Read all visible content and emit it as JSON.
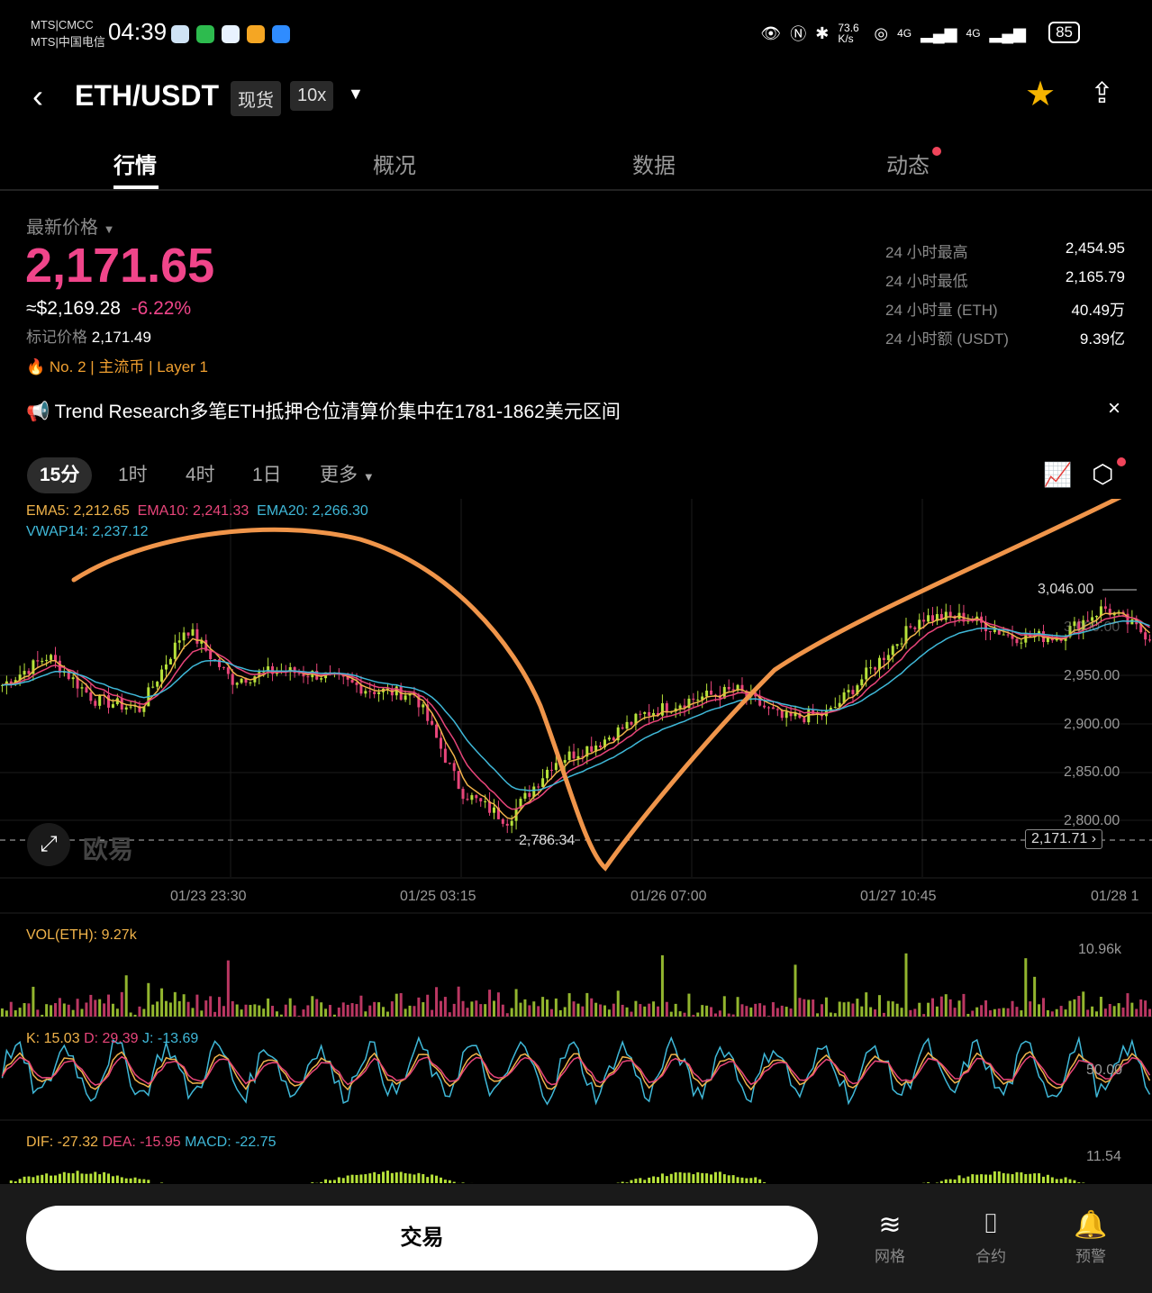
{
  "status_bar": {
    "carrier1": "MTS|CMCC",
    "carrier2": "MTS|中国电信",
    "time": "04:39",
    "speed": "73.6 K/s",
    "signal1": "4G",
    "signal2": "4G",
    "battery": "85"
  },
  "header": {
    "pair": "ETH/USDT",
    "tag_spot": "现货",
    "tag_leverage": "10x",
    "icons": [
      "back-icon",
      "star-icon",
      "share-icon"
    ],
    "favorite_color": "#f5b400"
  },
  "tabs": [
    {
      "label": "行情",
      "active": true
    },
    {
      "label": "概况"
    },
    {
      "label": "数据"
    },
    {
      "label": "动态",
      "badge": true
    }
  ],
  "price": {
    "label": "最新价格",
    "last": "2,171.65",
    "usd": "≈$2,169.28",
    "change": "-6.22%",
    "mark_label": "标记价格",
    "mark": "2,171.49",
    "rank": "No. 2",
    "tag1": "主流币",
    "tag2": "Layer 1",
    "color_down": "#f0458a"
  },
  "stats": [
    {
      "label": "24 小时最高",
      "value": "2,454.95"
    },
    {
      "label": "24 小时最低",
      "value": "2,165.79"
    },
    {
      "label": "24 小时量 (ETH)",
      "value": "40.49万"
    },
    {
      "label": "24 小时额 (USDT)",
      "value": "9.39亿"
    }
  ],
  "notice": {
    "text": "Trend Research多笔ETH抵押仓位清算价集中在1781-1862美元区间",
    "close": "×"
  },
  "intervals": [
    {
      "label": "15分",
      "active": true
    },
    {
      "label": "1时"
    },
    {
      "label": "4时"
    },
    {
      "label": "1日"
    },
    {
      "label": "更多"
    }
  ],
  "chart_data": {
    "type": "candlestick",
    "legend": {
      "ema5": "EMA5: 2,212.65",
      "ema10": "EMA10: 2,241.33",
      "ema20": "EMA20: 2,266.30",
      "vwap": "VWAP14: 2,237.12"
    },
    "colors": {
      "ema5": "#f0b34a",
      "ema10": "#e8457a",
      "ema20": "#3fb8d8",
      "vwap": "#3fb8d8",
      "up": "#b7e23a",
      "down": "#e8457a",
      "annotation": "#f0954a"
    },
    "y_ticks": [
      "3,000.00",
      "2,950.00",
      "2,900.00",
      "2,850.00",
      "2,800.00"
    ],
    "ylim": [
      2780,
      3060
    ],
    "x_ticks": [
      "01/23 23:30",
      "01/25 03:15",
      "01/26 07:00",
      "01/27 10:45",
      "01/28 1"
    ],
    "high_label": "3,046.00",
    "low_label": "2,786.34",
    "current_price_label": "2,171.71",
    "approx_close": [
      2940,
      2970,
      2925,
      2915,
      3000,
      2945,
      2955,
      2950,
      2935,
      2930,
      2830,
      2800,
      2860,
      2880,
      2910,
      2925,
      2935,
      2905,
      2910,
      2960,
      3010,
      3010,
      2990,
      2990,
      3020,
      2990
    ],
    "watermark": "欧易"
  },
  "volume": {
    "legend": "VOL(ETH): 9.27k",
    "max_label": "10.96k"
  },
  "kdj": {
    "k": "K: 15.03",
    "d": "D: 29.39",
    "j": "J: -13.69",
    "tick": "50.00"
  },
  "macd": {
    "dif": "DIF: -27.32",
    "dea": "DEA: -15.95",
    "macd": "MACD: -22.75",
    "tick": "11.54"
  },
  "bottom": {
    "trade": "交易",
    "grid": "网格",
    "contract": "合约",
    "alert": "预警"
  }
}
